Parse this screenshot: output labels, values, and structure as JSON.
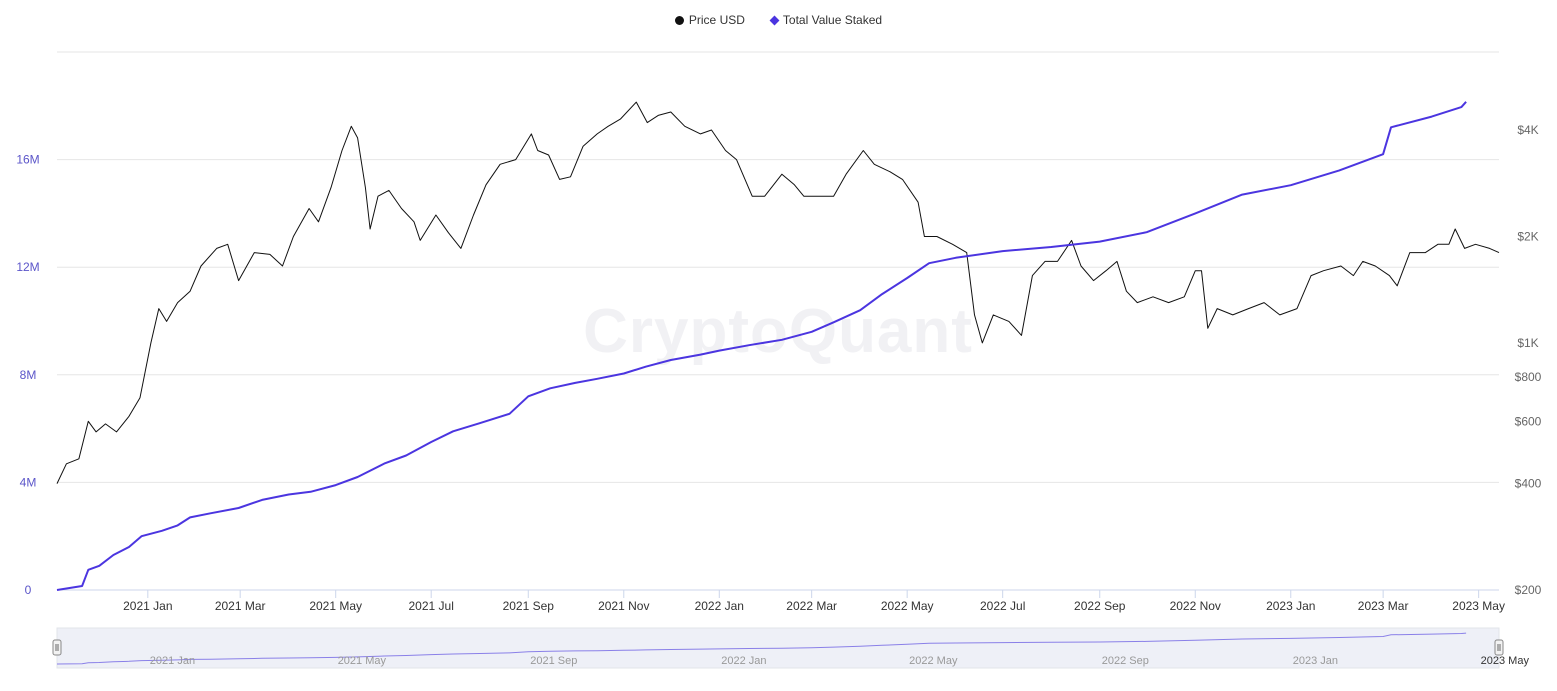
{
  "legend": {
    "price_label": "Price USD",
    "staked_label": "Total Value Staked"
  },
  "watermark": "CryptoQuant",
  "colors": {
    "price": "#111111",
    "staked": "#4b35e0",
    "left_axis": "#5b55c9",
    "grid": "#e6e6e6"
  },
  "chart_data": {
    "type": "line",
    "x_range": [
      "2020-11-04",
      "2023-05-14"
    ],
    "left_axis": {
      "label": "",
      "ticks": [
        {
          "value": 0,
          "label": "0"
        },
        {
          "value": 4000000,
          "label": "4M"
        },
        {
          "value": 8000000,
          "label": "8M"
        },
        {
          "value": 12000000,
          "label": "12M"
        },
        {
          "value": 16000000,
          "label": "16M"
        }
      ],
      "range": [
        0,
        20000000
      ]
    },
    "right_axis": {
      "label": "",
      "scale": "log",
      "ticks": [
        {
          "value": 200,
          "label": "$200"
        },
        {
          "value": 400,
          "label": "$400"
        },
        {
          "value": 600,
          "label": "$600"
        },
        {
          "value": 800,
          "label": "$800"
        },
        {
          "value": 1000,
          "label": "$1K"
        },
        {
          "value": 2000,
          "label": "$2K"
        },
        {
          "value": 4000,
          "label": "$4K"
        }
      ],
      "range": [
        200,
        6650
      ]
    },
    "x_ticks": [
      {
        "date": "2021-01-01",
        "label": "2021 Jan"
      },
      {
        "date": "2021-03-01",
        "label": "2021 Mar"
      },
      {
        "date": "2021-05-01",
        "label": "2021 May"
      },
      {
        "date": "2021-07-01",
        "label": "2021 Jul"
      },
      {
        "date": "2021-09-01",
        "label": "2021 Sep"
      },
      {
        "date": "2021-11-01",
        "label": "2021 Nov"
      },
      {
        "date": "2022-01-01",
        "label": "2022 Jan"
      },
      {
        "date": "2022-03-01",
        "label": "2022 Mar"
      },
      {
        "date": "2022-05-01",
        "label": "2022 May"
      },
      {
        "date": "2022-07-01",
        "label": "2022 Jul"
      },
      {
        "date": "2022-09-01",
        "label": "2022 Sep"
      },
      {
        "date": "2022-11-01",
        "label": "2022 Nov"
      },
      {
        "date": "2023-01-01",
        "label": "2023 Jan"
      },
      {
        "date": "2023-03-01",
        "label": "2023 Mar"
      },
      {
        "date": "2023-05-01",
        "label": "2023 May"
      }
    ],
    "navigator_ticks": [
      {
        "date": "2021-01-01",
        "label": "2021 Jan"
      },
      {
        "date": "2021-05-01",
        "label": "2021 May"
      },
      {
        "date": "2021-09-01",
        "label": "2021 Sep"
      },
      {
        "date": "2022-01-01",
        "label": "2022 Jan"
      },
      {
        "date": "2022-05-01",
        "label": "2022 May"
      },
      {
        "date": "2022-09-01",
        "label": "2022 Sep"
      },
      {
        "date": "2023-01-01",
        "label": "2023 Jan"
      },
      {
        "date": "2023-05-01",
        "label": "2023 May"
      }
    ],
    "grid": true,
    "legend_position": "top-center",
    "series": [
      {
        "name": "Price USD",
        "axis": "right",
        "points": [
          [
            "2020-11-04",
            400
          ],
          [
            "2020-11-10",
            455
          ],
          [
            "2020-11-18",
            470
          ],
          [
            "2020-11-24",
            600
          ],
          [
            "2020-11-29",
            560
          ],
          [
            "2020-12-05",
            590
          ],
          [
            "2020-12-12",
            560
          ],
          [
            "2020-12-20",
            620
          ],
          [
            "2020-12-27",
            700
          ],
          [
            "2021-01-03",
            1000
          ],
          [
            "2021-01-08",
            1250
          ],
          [
            "2021-01-13",
            1150
          ],
          [
            "2021-01-20",
            1300
          ],
          [
            "2021-01-28",
            1400
          ],
          [
            "2021-02-04",
            1650
          ],
          [
            "2021-02-14",
            1850
          ],
          [
            "2021-02-21",
            1900
          ],
          [
            "2021-02-28",
            1500
          ],
          [
            "2021-03-10",
            1800
          ],
          [
            "2021-03-20",
            1780
          ],
          [
            "2021-03-28",
            1650
          ],
          [
            "2021-04-04",
            2000
          ],
          [
            "2021-04-14",
            2400
          ],
          [
            "2021-04-20",
            2200
          ],
          [
            "2021-04-28",
            2750
          ],
          [
            "2021-05-05",
            3500
          ],
          [
            "2021-05-11",
            4100
          ],
          [
            "2021-05-15",
            3800
          ],
          [
            "2021-05-20",
            2750
          ],
          [
            "2021-05-23",
            2100
          ],
          [
            "2021-05-28",
            2600
          ],
          [
            "2021-06-04",
            2700
          ],
          [
            "2021-06-12",
            2400
          ],
          [
            "2021-06-20",
            2200
          ],
          [
            "2021-06-24",
            1950
          ],
          [
            "2021-07-04",
            2300
          ],
          [
            "2021-07-12",
            2050
          ],
          [
            "2021-07-20",
            1850
          ],
          [
            "2021-07-28",
            2300
          ],
          [
            "2021-08-05",
            2800
          ],
          [
            "2021-08-14",
            3200
          ],
          [
            "2021-08-24",
            3300
          ],
          [
            "2021-09-03",
            3900
          ],
          [
            "2021-09-07",
            3500
          ],
          [
            "2021-09-14",
            3400
          ],
          [
            "2021-09-21",
            2900
          ],
          [
            "2021-09-28",
            2950
          ],
          [
            "2021-10-06",
            3600
          ],
          [
            "2021-10-15",
            3900
          ],
          [
            "2021-10-22",
            4100
          ],
          [
            "2021-10-30",
            4300
          ],
          [
            "2021-11-09",
            4800
          ],
          [
            "2021-11-16",
            4200
          ],
          [
            "2021-11-23",
            4400
          ],
          [
            "2021-12-01",
            4500
          ],
          [
            "2021-12-10",
            4100
          ],
          [
            "2021-12-20",
            3900
          ],
          [
            "2021-12-27",
            4000
          ],
          [
            "2022-01-05",
            3500
          ],
          [
            "2022-01-12",
            3300
          ],
          [
            "2022-01-22",
            2600
          ],
          [
            "2022-01-30",
            2600
          ],
          [
            "2022-02-10",
            3000
          ],
          [
            "2022-02-18",
            2800
          ],
          [
            "2022-02-24",
            2600
          ],
          [
            "2022-03-05",
            2600
          ],
          [
            "2022-03-15",
            2600
          ],
          [
            "2022-03-23",
            3000
          ],
          [
            "2022-04-03",
            3500
          ],
          [
            "2022-04-10",
            3200
          ],
          [
            "2022-04-20",
            3050
          ],
          [
            "2022-04-28",
            2900
          ],
          [
            "2022-05-08",
            2500
          ],
          [
            "2022-05-12",
            2000
          ],
          [
            "2022-05-20",
            2000
          ],
          [
            "2022-05-30",
            1900
          ],
          [
            "2022-06-08",
            1800
          ],
          [
            "2022-06-13",
            1200
          ],
          [
            "2022-06-18",
            1000
          ],
          [
            "2022-06-25",
            1200
          ],
          [
            "2022-07-05",
            1150
          ],
          [
            "2022-07-13",
            1050
          ],
          [
            "2022-07-20",
            1550
          ],
          [
            "2022-07-28",
            1700
          ],
          [
            "2022-08-05",
            1700
          ],
          [
            "2022-08-14",
            1950
          ],
          [
            "2022-08-20",
            1650
          ],
          [
            "2022-08-28",
            1500
          ],
          [
            "2022-09-05",
            1600
          ],
          [
            "2022-09-12",
            1700
          ],
          [
            "2022-09-18",
            1400
          ],
          [
            "2022-09-25",
            1300
          ],
          [
            "2022-10-05",
            1350
          ],
          [
            "2022-10-15",
            1300
          ],
          [
            "2022-10-25",
            1350
          ],
          [
            "2022-11-01",
            1600
          ],
          [
            "2022-11-05",
            1600
          ],
          [
            "2022-11-09",
            1100
          ],
          [
            "2022-11-15",
            1250
          ],
          [
            "2022-11-25",
            1200
          ],
          [
            "2022-12-05",
            1250
          ],
          [
            "2022-12-15",
            1300
          ],
          [
            "2022-12-25",
            1200
          ],
          [
            "2023-01-05",
            1250
          ],
          [
            "2023-01-14",
            1550
          ],
          [
            "2023-01-22",
            1600
          ],
          [
            "2023-02-02",
            1650
          ],
          [
            "2023-02-10",
            1550
          ],
          [
            "2023-02-16",
            1700
          ],
          [
            "2023-02-24",
            1650
          ],
          [
            "2023-03-05",
            1550
          ],
          [
            "2023-03-10",
            1450
          ],
          [
            "2023-03-18",
            1800
          ],
          [
            "2023-03-28",
            1800
          ],
          [
            "2023-04-05",
            1900
          ],
          [
            "2023-04-12",
            1900
          ],
          [
            "2023-04-16",
            2100
          ],
          [
            "2023-04-22",
            1850
          ],
          [
            "2023-04-29",
            1900
          ],
          [
            "2023-05-08",
            1850
          ],
          [
            "2023-05-14",
            1800
          ]
        ]
      },
      {
        "name": "Total Value Staked",
        "axis": "left",
        "points": [
          [
            "2020-11-04",
            0
          ],
          [
            "2020-11-20",
            150000
          ],
          [
            "2020-11-24",
            750000
          ],
          [
            "2020-12-01",
            900000
          ],
          [
            "2020-12-10",
            1300000
          ],
          [
            "2020-12-20",
            1600000
          ],
          [
            "2020-12-28",
            2000000
          ],
          [
            "2021-01-10",
            2200000
          ],
          [
            "2021-01-20",
            2400000
          ],
          [
            "2021-01-28",
            2700000
          ],
          [
            "2021-02-10",
            2850000
          ],
          [
            "2021-02-28",
            3050000
          ],
          [
            "2021-03-15",
            3350000
          ],
          [
            "2021-04-01",
            3550000
          ],
          [
            "2021-04-15",
            3650000
          ],
          [
            "2021-05-01",
            3900000
          ],
          [
            "2021-05-15",
            4200000
          ],
          [
            "2021-06-01",
            4700000
          ],
          [
            "2021-06-15",
            5000000
          ],
          [
            "2021-07-01",
            5500000
          ],
          [
            "2021-07-15",
            5900000
          ],
          [
            "2021-08-01",
            6200000
          ],
          [
            "2021-08-20",
            6550000
          ],
          [
            "2021-09-01",
            7200000
          ],
          [
            "2021-09-15",
            7500000
          ],
          [
            "2021-10-01",
            7700000
          ],
          [
            "2021-10-15",
            7850000
          ],
          [
            "2021-11-01",
            8050000
          ],
          [
            "2021-11-15",
            8300000
          ],
          [
            "2021-12-01",
            8550000
          ],
          [
            "2021-12-20",
            8750000
          ],
          [
            "2022-01-01",
            8900000
          ],
          [
            "2022-01-20",
            9100000
          ],
          [
            "2022-02-10",
            9300000
          ],
          [
            "2022-03-01",
            9600000
          ],
          [
            "2022-03-15",
            9950000
          ],
          [
            "2022-04-01",
            10400000
          ],
          [
            "2022-04-15",
            11000000
          ],
          [
            "2022-05-01",
            11600000
          ],
          [
            "2022-05-15",
            12150000
          ],
          [
            "2022-06-01",
            12350000
          ],
          [
            "2022-07-01",
            12600000
          ],
          [
            "2022-08-01",
            12750000
          ],
          [
            "2022-09-01",
            12950000
          ],
          [
            "2022-10-01",
            13300000
          ],
          [
            "2022-11-01",
            14000000
          ],
          [
            "2022-12-01",
            14700000
          ],
          [
            "2023-01-01",
            15050000
          ],
          [
            "2023-02-01",
            15600000
          ],
          [
            "2023-03-01",
            16200000
          ],
          [
            "2023-03-06",
            17200000
          ],
          [
            "2023-04-01",
            17600000
          ],
          [
            "2023-04-20",
            17950000
          ],
          [
            "2023-04-23",
            18150000
          ]
        ]
      }
    ]
  }
}
